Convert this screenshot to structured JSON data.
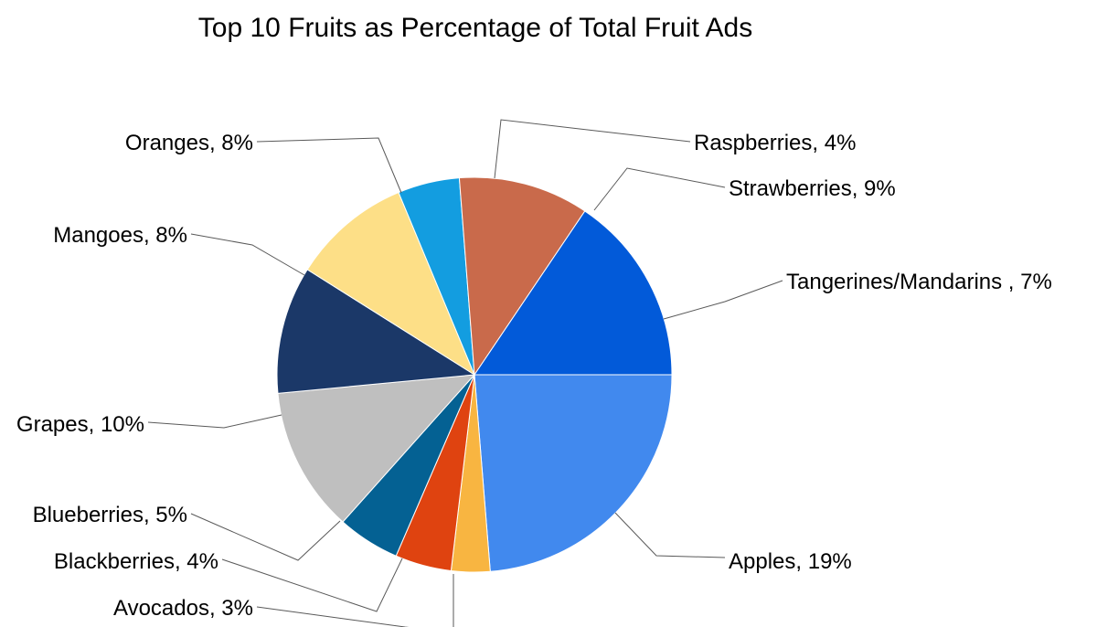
{
  "chart_data": {
    "type": "pie",
    "title": "Top 10 Fruits as Percentage of Total Fruit Ads",
    "slices": [
      {
        "label": "Apples",
        "value": 19,
        "display": "Apples, 19%",
        "color": "#4189ee"
      },
      {
        "label": "Avocados",
        "value": 3,
        "display": "Avocados, 3%",
        "color": "#f8b541"
      },
      {
        "label": "Blackberries",
        "value": 4,
        "display": "Blackberries, 4%",
        "color": "#df4310"
      },
      {
        "label": "Blueberries",
        "value": 5,
        "display": "Blueberries, 5%",
        "color": "#046193"
      },
      {
        "label": "Grapes",
        "value": 10,
        "display": "Grapes, 10%",
        "color": "#bfbfbf"
      },
      {
        "label": "Mangoes",
        "value": 8,
        "display": "Mangoes, 8%",
        "color": "#1b3868"
      },
      {
        "label": "Oranges",
        "value": 8,
        "display": "Oranges, 8%",
        "color": "#fddf87"
      },
      {
        "label": "Raspberries",
        "value": 4,
        "display": "Raspberries, 4%",
        "color": "#139de0"
      },
      {
        "label": "Strawberries",
        "value": 9,
        "display": "Strawberries, 9%",
        "color": "#c96a4b"
      },
      {
        "label": "Tangerines/Mandarins ",
        "value": 7,
        "display": "Tangerines/Mandarins , 7%",
        "color": "#025ad9"
      }
    ]
  }
}
